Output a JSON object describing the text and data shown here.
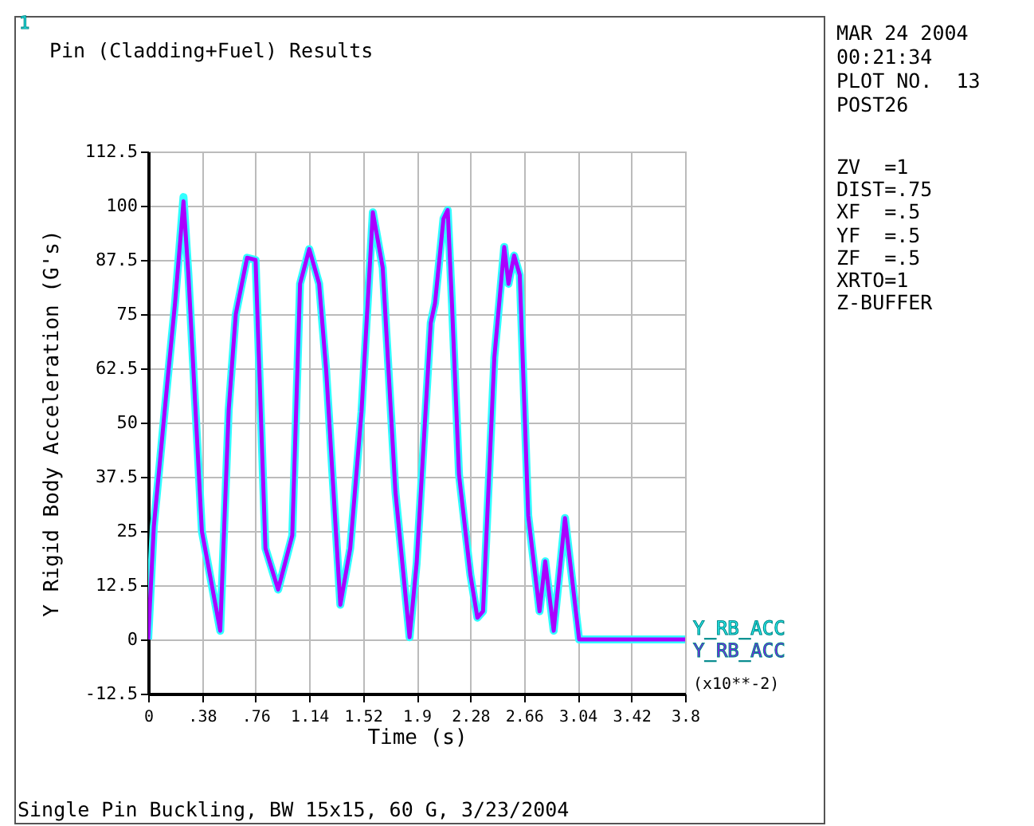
{
  "chart_data": {
    "type": "line",
    "title": "Pin (Cladding+Fuel) Results",
    "xlabel": "Time (s)",
    "ylabel": "Y Rigid Body Acceleration (G's)",
    "x": [
      0,
      0.04,
      0.135,
      0.19,
      0.25,
      0.285,
      0.38,
      0.51,
      0.57,
      0.62,
      0.7,
      0.76,
      0.83,
      0.92,
      1.02,
      1.075,
      1.14,
      1.21,
      1.26,
      1.36,
      1.43,
      1.51,
      1.59,
      1.66,
      1.75,
      1.85,
      1.9,
      2.0,
      2.03,
      2.09,
      2.12,
      2.15,
      2.2,
      2.28,
      2.33,
      2.37,
      2.45,
      2.52,
      2.55,
      2.59,
      2.63,
      2.69,
      2.77,
      2.81,
      2.87,
      2.95,
      3.05,
      3.8
    ],
    "series": [
      {
        "name": "Y_RB_ACC",
        "color": "#33ffff",
        "values": [
          0,
          26,
          59,
          77.5,
          102,
          84,
          25,
          2,
          53,
          75,
          88,
          87.5,
          21,
          11.5,
          24,
          82,
          90,
          82,
          62,
          8,
          21,
          52.5,
          98.5,
          85.7,
          34,
          0.5,
          17.5,
          73,
          77.5,
          97,
          99,
          77.5,
          38,
          15,
          5,
          6.5,
          65,
          90.5,
          82,
          88.5,
          84,
          28.5,
          6.5,
          18,
          2,
          28,
          0,
          0
        ]
      },
      {
        "name": "Y_RB_ACC",
        "color": "#aa00ff",
        "values": [
          0,
          26,
          59,
          77.5,
          101,
          84,
          25,
          2,
          53,
          75,
          88,
          87.5,
          21,
          11.5,
          24,
          82,
          90,
          82,
          62,
          8,
          21,
          52.5,
          98.5,
          85.7,
          34,
          0.5,
          17.5,
          73,
          77.5,
          97,
          99,
          77.5,
          38,
          15,
          5,
          6.5,
          65,
          90.5,
          82,
          88.5,
          84,
          28.5,
          6.5,
          18,
          2,
          28,
          0,
          0
        ]
      }
    ],
    "xlim": [
      0,
      3.8
    ],
    "xticks": [
      0,
      {
        "value": 0.38,
        "label": ".38"
      },
      {
        "value": 0.76,
        "label": ".76"
      },
      1.14,
      1.52,
      1.9,
      2.28,
      2.66,
      3.04,
      3.42,
      3.8
    ],
    "ylim": [
      -12.5,
      112.5
    ],
    "yticks": [
      -12.5,
      0,
      12.5,
      25,
      37.5,
      50,
      62.5,
      75,
      87.5,
      100,
      112.5
    ],
    "grid": true,
    "legend": false,
    "annotations": [
      "1",
      "(x10**-2)",
      "Single Pin Buckling, BW 15x15, 60 G, 3/23/2004",
      "MAR 24 2004",
      "00:21:34",
      "PLOT NO.  13",
      "POST26",
      "ZV  =1",
      "DIST=.75",
      "XF  =.5",
      "YF  =.5",
      "ZF  =.5",
      "XRTO=1",
      "Z-BUFFER"
    ]
  }
}
